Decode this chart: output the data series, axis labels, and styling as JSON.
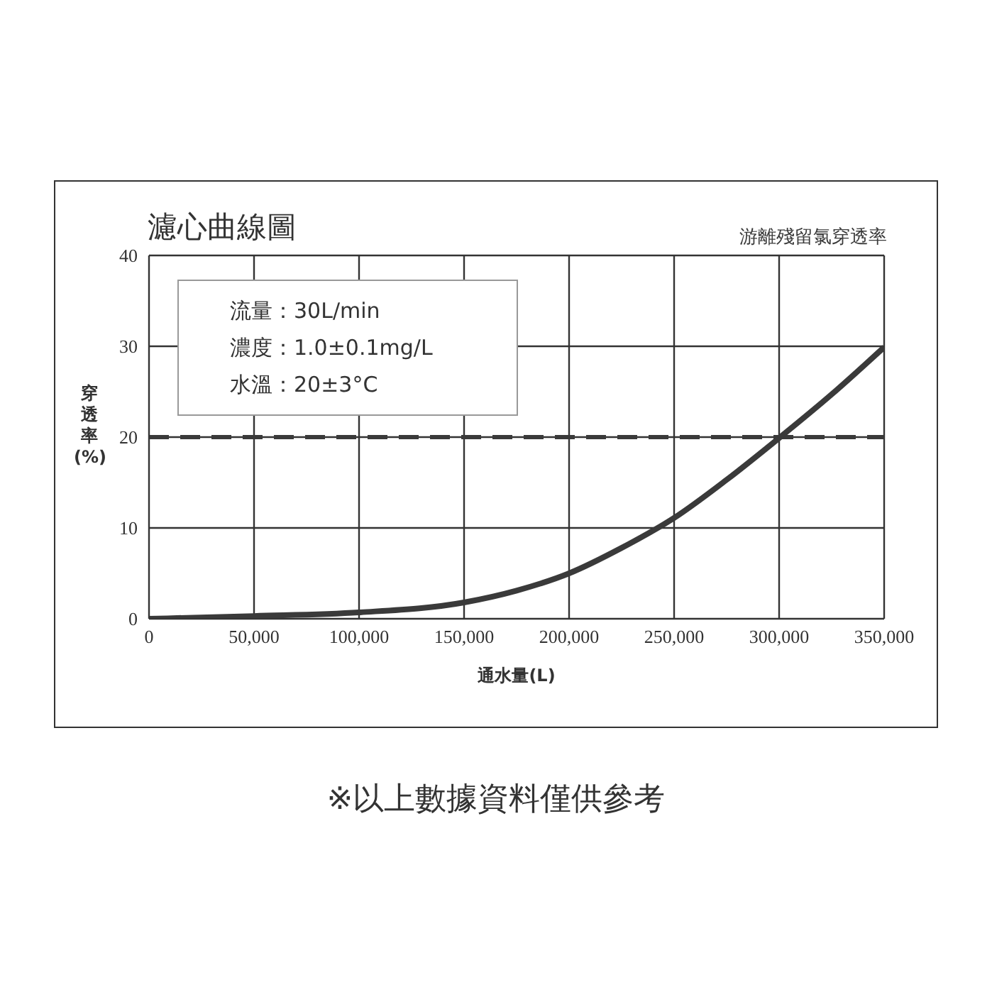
{
  "chart_data": {
    "type": "line",
    "title": "濾心曲線圖",
    "xlabel": "通水量(L)",
    "ylabel": "穿透率(%)",
    "x": [
      0,
      50000,
      100000,
      150000,
      175000,
      200000,
      225000,
      250000,
      275000,
      300000,
      325000,
      350000
    ],
    "series": [
      {
        "name": "游離殘留氯穿透率",
        "color": "#3a3a3a",
        "values": [
          0,
          0.3,
          0.7,
          1.8,
          3.1,
          5.0,
          7.8,
          11.1,
          15.3,
          19.9,
          24.7,
          29.9
        ]
      }
    ],
    "xlim": [
      0,
      350000
    ],
    "xticks": [
      0,
      {
        "value": 50000,
        "label": "50,000"
      },
      {
        "value": 100000,
        "label": "100,000"
      },
      {
        "value": 150000,
        "label": "150,000"
      },
      {
        "value": 200000,
        "label": "200,000"
      },
      {
        "value": 250000,
        "label": "250,000"
      },
      {
        "value": 300000,
        "label": "300,000"
      },
      {
        "value": 350000,
        "label": "350,000"
      }
    ],
    "ylim": [
      0,
      40
    ],
    "yticks": [
      0,
      10,
      20,
      30,
      40
    ],
    "grid": true,
    "legend": "top right",
    "marker": "none",
    "line_style": "solid",
    "ref_lines": [
      {
        "axis": "y",
        "value": 20,
        "color": "#3a3a3a",
        "line_style": "dashed"
      }
    ],
    "annotations": [
      "流量：30L/min",
      "濃度：1.0±0.1mg/L",
      "水溫：20±3°C",
      "※以上數據資料僅供參考"
    ]
  }
}
